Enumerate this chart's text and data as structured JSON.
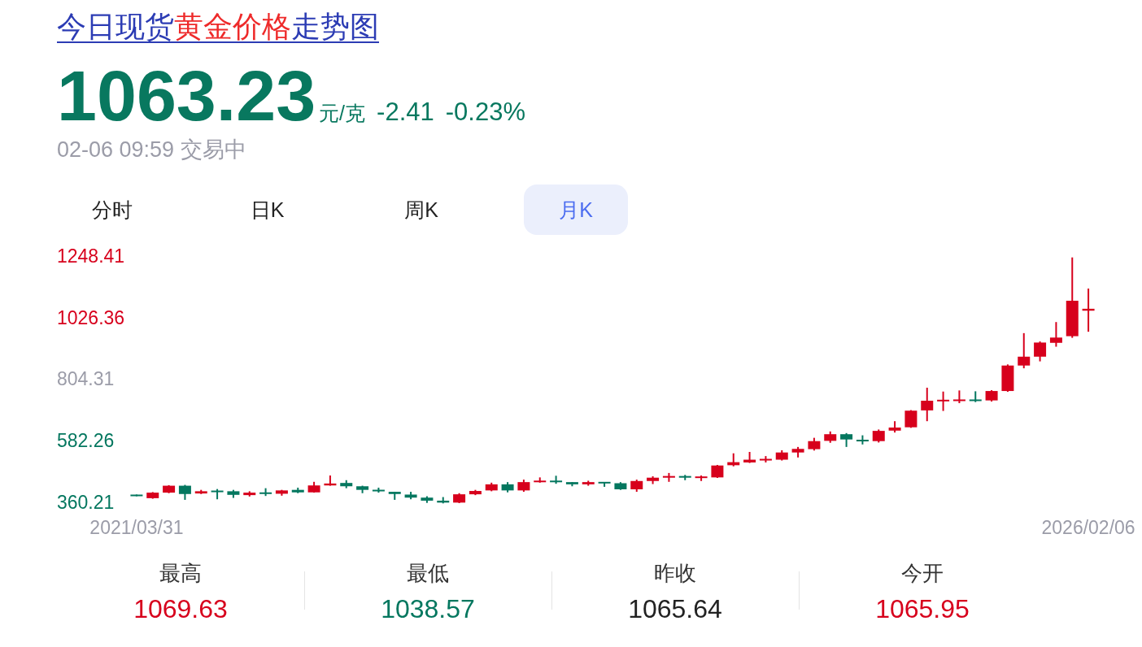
{
  "chart_data": {
    "type": "candlestick",
    "title": "今日现货黄金价格走势图",
    "categories": [
      "2021/03/31",
      null,
      null,
      null,
      null,
      null,
      null,
      null,
      null,
      null,
      null,
      null,
      null,
      null,
      null,
      null,
      null,
      null,
      null,
      null,
      null,
      null,
      null,
      null,
      null,
      null,
      null,
      null,
      null,
      null,
      null,
      null,
      null,
      null,
      null,
      null,
      null,
      null,
      null,
      null,
      null,
      null,
      null,
      null,
      null,
      null,
      null,
      null,
      null,
      null,
      null,
      null,
      null,
      null,
      null,
      null,
      null,
      null,
      null,
      "2026/02/06"
    ],
    "ohlc": [
      [
        390,
        392,
        386,
        388
      ],
      [
        379,
        401,
        377,
        399
      ],
      [
        399,
        426,
        397,
        424
      ],
      [
        424,
        427,
        373,
        394
      ],
      [
        396,
        409,
        394,
        404
      ],
      [
        404,
        412,
        375,
        403
      ],
      [
        404,
        409,
        380,
        391
      ],
      [
        390,
        404,
        385,
        399
      ],
      [
        399,
        415,
        387,
        395
      ],
      [
        395,
        409,
        388,
        407
      ],
      [
        409,
        417,
        397,
        400
      ],
      [
        400,
        438,
        399,
        425
      ],
      [
        425,
        461,
        424,
        432
      ],
      [
        434,
        444,
        415,
        422
      ],
      [
        422,
        424,
        397,
        409
      ],
      [
        409,
        417,
        399,
        404
      ],
      [
        402,
        402,
        373,
        394
      ],
      [
        392,
        402,
        375,
        381
      ],
      [
        381,
        386,
        362,
        370
      ],
      [
        370,
        383,
        360.21,
        363
      ],
      [
        363,
        397,
        361,
        393
      ],
      [
        393,
        409,
        390,
        405
      ],
      [
        407,
        435,
        404,
        429
      ],
      [
        429,
        437,
        400,
        407
      ],
      [
        407,
        446,
        402,
        437
      ],
      [
        437,
        454,
        435,
        442
      ],
      [
        442,
        460,
        431,
        437
      ],
      [
        437,
        437,
        422,
        429
      ],
      [
        429,
        442,
        424,
        437
      ],
      [
        437,
        437,
        420,
        433
      ],
      [
        433,
        437,
        409,
        411
      ],
      [
        411,
        446,
        402,
        441
      ],
      [
        441,
        458,
        430,
        453
      ],
      [
        453,
        470,
        438,
        459
      ],
      [
        459,
        463,
        444,
        453
      ],
      [
        453,
        461,
        441,
        456
      ],
      [
        454,
        499,
        452,
        497
      ],
      [
        498,
        541,
        494,
        509
      ],
      [
        508,
        546,
        506,
        518
      ],
      [
        516,
        531,
        508,
        520
      ],
      [
        518,
        552,
        515,
        544
      ],
      [
        544,
        564,
        526,
        557
      ],
      [
        556,
        597,
        551,
        585
      ],
      [
        586,
        620,
        579,
        610
      ],
      [
        610,
        614,
        564,
        591
      ],
      [
        590,
        606,
        573,
        584
      ],
      [
        585,
        627,
        580,
        622
      ],
      [
        623,
        657,
        616,
        634
      ],
      [
        635,
        697,
        633,
        695
      ],
      [
        696,
        778,
        657,
        731
      ],
      [
        730,
        764,
        694,
        733
      ],
      [
        730,
        768,
        722,
        735
      ],
      [
        735,
        765,
        726,
        730
      ],
      [
        732,
        769,
        728,
        766
      ],
      [
        766,
        862,
        763,
        858
      ],
      [
        858,
        975,
        848,
        890
      ],
      [
        890,
        945,
        873,
        941
      ],
      [
        940,
        1015,
        926,
        959
      ],
      [
        964,
        1248.41,
        958,
        1092
      ],
      [
        1056,
        1136,
        980,
        1063
      ]
    ],
    "colors": [
      "#04775f",
      "#d7001c",
      "#d7001c",
      "#04775f",
      "#d7001c",
      "#04775f",
      "#04775f",
      "#d7001c",
      "#04775f",
      "#d7001c",
      "#04775f",
      "#d7001c",
      "#d7001c",
      "#04775f",
      "#04775f",
      "#04775f",
      "#04775f",
      "#04775f",
      "#04775f",
      "#04775f",
      "#d7001c",
      "#d7001c",
      "#d7001c",
      "#04775f",
      "#d7001c",
      "#d7001c",
      "#04775f",
      "#04775f",
      "#d7001c",
      "#04775f",
      "#04775f",
      "#d7001c",
      "#d7001c",
      "#d7001c",
      "#04775f",
      "#d7001c",
      "#d7001c",
      "#d7001c",
      "#d7001c",
      "#d7001c",
      "#d7001c",
      "#d7001c",
      "#d7001c",
      "#d7001c",
      "#04775f",
      "#04775f",
      "#d7001c",
      "#d7001c",
      "#d7001c",
      "#d7001c",
      "#d7001c",
      "#d7001c",
      "#04775f",
      "#d7001c",
      "#d7001c",
      "#d7001c",
      "#d7001c",
      "#d7001c",
      "#d7001c",
      "#d7001c"
    ],
    "ylim": [
      360.21,
      1248.41
    ],
    "yticks": [
      360.21,
      582.26,
      804.31,
      1026.36,
      1248.41
    ],
    "annotations": [
      "1063.23",
      "元/克",
      "-2.41",
      "-0.23%",
      "02-06 09:59 交易中",
      "分时",
      "日K",
      "周K",
      "月K",
      "最高",
      "1069.63",
      "最低",
      "1038.57",
      "昨收",
      "1065.64",
      "今开",
      "1065.95"
    ]
  }
}
